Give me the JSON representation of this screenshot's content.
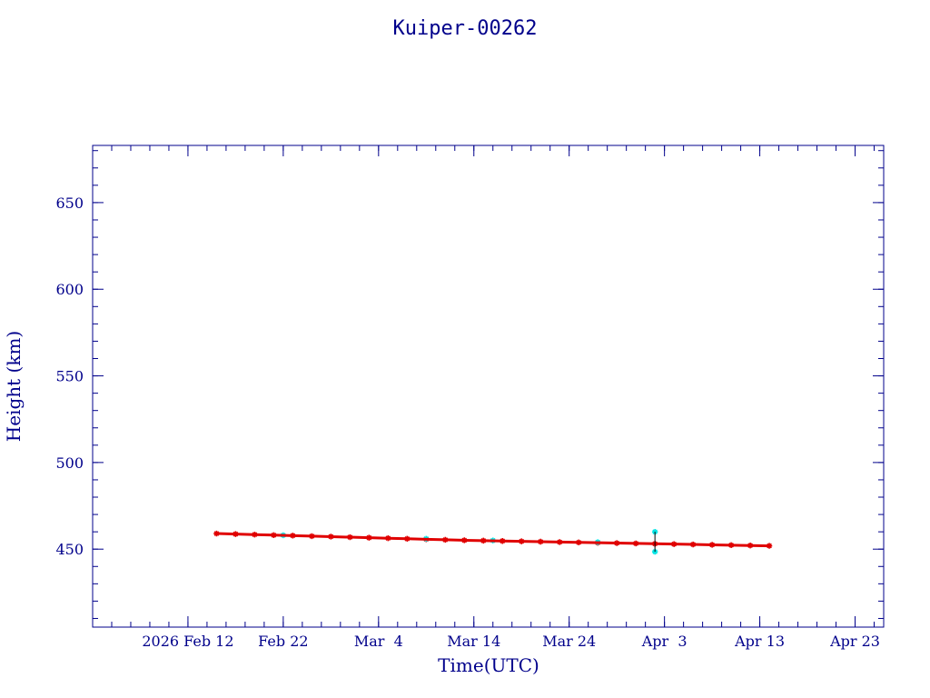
{
  "chart_data": {
    "type": "scatter",
    "title": "Kuiper-00262",
    "xlabel": "Time(UTC)",
    "ylabel": "Height (km)",
    "x_axis_kind": "date",
    "xlim": [
      "2026-02-02",
      "2026-04-26"
    ],
    "ylim": [
      405,
      683
    ],
    "x_ticks": [
      {
        "date": "2026-02-12",
        "label": "2026 Feb 12"
      },
      {
        "date": "2026-02-22",
        "label": "Feb 22"
      },
      {
        "date": "2026-03-04",
        "label": "Mar  4"
      },
      {
        "date": "2026-03-14",
        "label": "Mar 14"
      },
      {
        "date": "2026-03-24",
        "label": "Mar 24"
      },
      {
        "date": "2026-04-03",
        "label": "Apr  3"
      },
      {
        "date": "2026-04-13",
        "label": "Apr 13"
      },
      {
        "date": "2026-04-23",
        "label": "Apr 23"
      }
    ],
    "y_ticks": [
      450,
      500,
      550,
      600,
      650
    ],
    "grid": false,
    "colors": {
      "axis": "#00008b",
      "series_main": "#e00000",
      "series_alt": "#00e5e5"
    },
    "series": [
      {
        "marker": "star",
        "color": "#e00000",
        "x": [
          "2026-02-15",
          "2026-02-17",
          "2026-02-19",
          "2026-02-21",
          "2026-02-23",
          "2026-02-25",
          "2026-02-27",
          "2026-03-01",
          "2026-03-03",
          "2026-03-05",
          "2026-03-07",
          "2026-03-09",
          "2026-03-11",
          "2026-03-13",
          "2026-03-15",
          "2026-03-17",
          "2026-03-19",
          "2026-03-21",
          "2026-03-23",
          "2026-03-25",
          "2026-03-27",
          "2026-03-29",
          "2026-03-31",
          "2026-04-02",
          "2026-04-04",
          "2026-04-06",
          "2026-04-08",
          "2026-04-10",
          "2026-04-12",
          "2026-04-14"
        ],
        "y": [
          459.0,
          458.7,
          458.4,
          458.1,
          457.8,
          457.5,
          457.2,
          456.9,
          456.6,
          456.3,
          456.0,
          455.7,
          455.4,
          455.1,
          454.9,
          454.7,
          454.5,
          454.3,
          454.1,
          453.9,
          453.7,
          453.5,
          453.3,
          453.1,
          452.9,
          452.7,
          452.5,
          452.3,
          452.1,
          451.9
        ]
      },
      {
        "marker": "star",
        "color": "#00e5e5",
        "x": [
          "2026-02-22",
          "2026-03-09",
          "2026-03-16",
          "2026-03-27",
          "2026-04-02",
          "2026-04-02"
        ],
        "y": [
          458.0,
          456.0,
          455.0,
          454.0,
          460.0,
          448.5
        ]
      }
    ]
  }
}
